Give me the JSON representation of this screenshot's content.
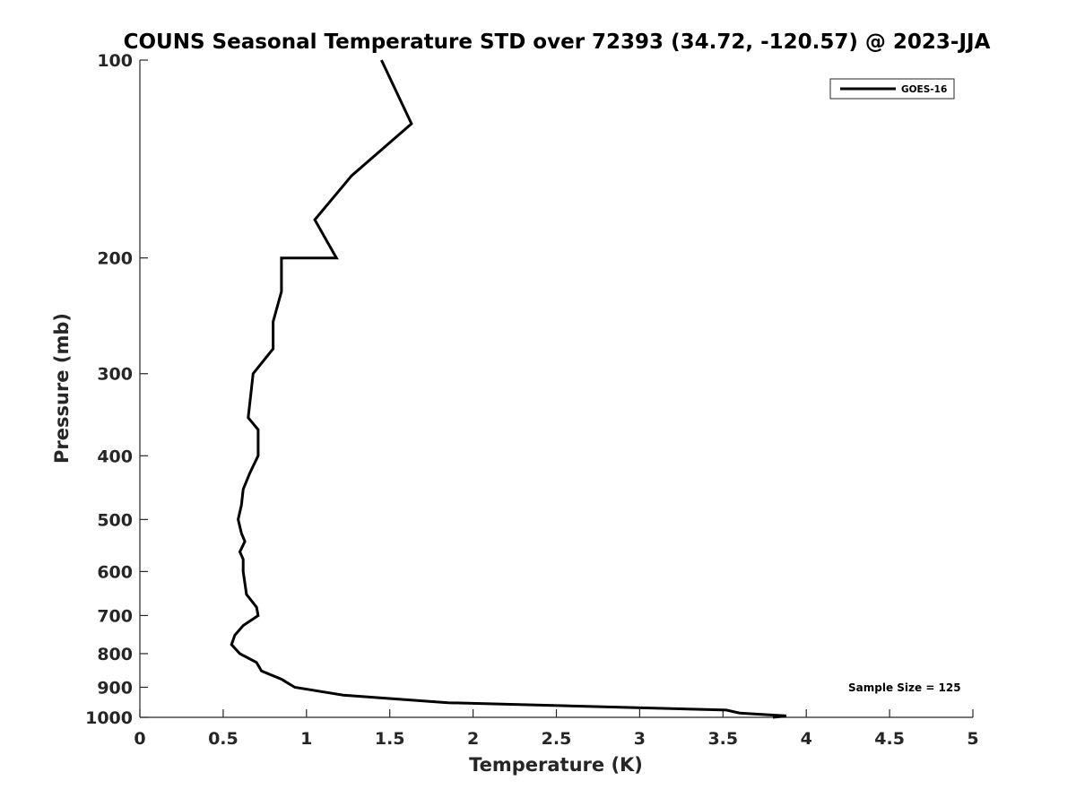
{
  "chart_data": {
    "type": "line",
    "title": "COUNS Seasonal Temperature STD over 72393 (34.72, -120.57) @ 2023-JJA",
    "xlabel": "Temperature (K)",
    "ylabel": "Pressure (mb)",
    "xlim": [
      0,
      5
    ],
    "ylim": [
      100,
      1000
    ],
    "y_scale": "log",
    "y_reversed": true,
    "grid": false,
    "legend_position": "top-right",
    "x_ticks": [
      "0",
      "0.5",
      "1",
      "1.5",
      "2",
      "2.5",
      "3",
      "3.5",
      "4",
      "4.5",
      "5"
    ],
    "y_ticks": [
      "100",
      "200",
      "300",
      "400",
      "500",
      "600",
      "700",
      "800",
      "900",
      "1000"
    ],
    "annotation": "Sample Size = 125",
    "series": [
      {
        "name": "GOES-16",
        "color": "#000000",
        "points": [
          {
            "x": 1.45,
            "y": 100
          },
          {
            "x": 1.63,
            "y": 125
          },
          {
            "x": 1.27,
            "y": 150
          },
          {
            "x": 1.05,
            "y": 175
          },
          {
            "x": 1.18,
            "y": 200
          },
          {
            "x": 0.85,
            "y": 200
          },
          {
            "x": 0.85,
            "y": 225
          },
          {
            "x": 0.8,
            "y": 250
          },
          {
            "x": 0.8,
            "y": 275
          },
          {
            "x": 0.68,
            "y": 300
          },
          {
            "x": 0.65,
            "y": 350
          },
          {
            "x": 0.71,
            "y": 365
          },
          {
            "x": 0.71,
            "y": 400
          },
          {
            "x": 0.66,
            "y": 425
          },
          {
            "x": 0.62,
            "y": 450
          },
          {
            "x": 0.61,
            "y": 475
          },
          {
            "x": 0.59,
            "y": 500
          },
          {
            "x": 0.61,
            "y": 525
          },
          {
            "x": 0.63,
            "y": 540
          },
          {
            "x": 0.6,
            "y": 560
          },
          {
            "x": 0.62,
            "y": 575
          },
          {
            "x": 0.62,
            "y": 600
          },
          {
            "x": 0.64,
            "y": 650
          },
          {
            "x": 0.7,
            "y": 680
          },
          {
            "x": 0.71,
            "y": 700
          },
          {
            "x": 0.62,
            "y": 725
          },
          {
            "x": 0.57,
            "y": 750
          },
          {
            "x": 0.55,
            "y": 775
          },
          {
            "x": 0.6,
            "y": 800
          },
          {
            "x": 0.7,
            "y": 825
          },
          {
            "x": 0.73,
            "y": 850
          },
          {
            "x": 0.85,
            "y": 875
          },
          {
            "x": 0.93,
            "y": 900
          },
          {
            "x": 1.22,
            "y": 925
          },
          {
            "x": 1.85,
            "y": 950
          },
          {
            "x": 3.52,
            "y": 975
          },
          {
            "x": 3.6,
            "y": 985
          },
          {
            "x": 3.88,
            "y": 995
          },
          {
            "x": 3.8,
            "y": 1000
          }
        ]
      }
    ]
  }
}
